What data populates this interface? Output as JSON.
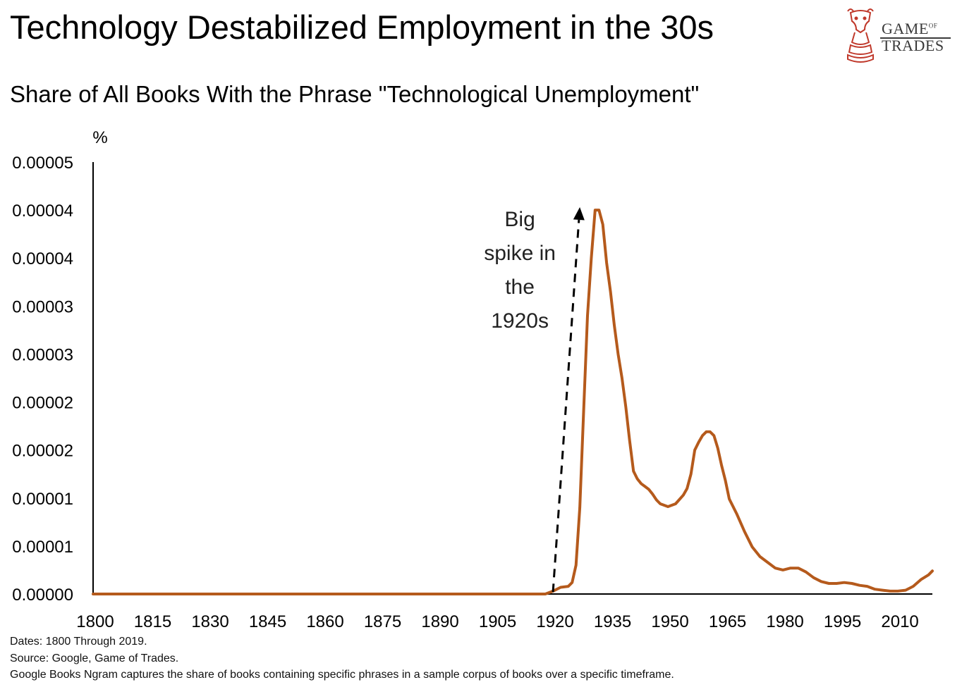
{
  "header": {
    "title": "Technology Destabilized Employment in the 30s",
    "subtitle": "Share of All Books With the Phrase \"Technological Unemployment\""
  },
  "logo": {
    "line1": "GAME",
    "line1_small": "OF",
    "line2": "TRADES"
  },
  "annotation": {
    "lines": [
      "Big",
      "spike in",
      "the",
      "1920s"
    ]
  },
  "footnotes": {
    "dates": "Dates: 1800 Through 2019.",
    "source": "Source: Google, Game of Trades.",
    "note": "Google Books Ngram captures the share of books containing specific phrases in a sample corpus of books over a specific timeframe."
  },
  "colors": {
    "line": "#b55a1c",
    "axis": "#000000",
    "logo_red": "#c0392b"
  },
  "chart_data": {
    "type": "line",
    "title": "Share of All Books With the Phrase \"Technological Unemployment\"",
    "ylabel": "%",
    "xlabel": "",
    "xlim": [
      1800,
      2019
    ],
    "ylim": [
      0,
      4.5e-05
    ],
    "x_ticks": [
      1800,
      1815,
      1830,
      1845,
      1860,
      1875,
      1890,
      1905,
      1920,
      1935,
      1950,
      1965,
      1980,
      1995,
      2010
    ],
    "y_ticks": [
      0,
      5e-06,
      1e-05,
      1.5e-05,
      2e-05,
      2.5e-05,
      3e-05,
      3.5e-05,
      4e-05,
      4.5e-05
    ],
    "y_tick_labels": [
      "0.00000",
      "0.00001",
      "0.00001",
      "0.00002",
      "0.00002",
      "0.00003",
      "0.00003",
      "0.00004",
      "0.00004",
      "0.00005"
    ],
    "grid": false,
    "series": [
      {
        "name": "Technological Unemployment",
        "x": [
          1800,
          1918,
          1920,
          1922,
          1924,
          1925,
          1926,
          1927,
          1928,
          1929,
          1930,
          1931,
          1932,
          1933,
          1934,
          1935,
          1936,
          1937,
          1938,
          1939,
          1940,
          1941,
          1942,
          1943,
          1944,
          1945,
          1946,
          1947,
          1948,
          1950,
          1952,
          1954,
          1955,
          1956,
          1957,
          1958,
          1959,
          1960,
          1961,
          1962,
          1963,
          1964,
          1965,
          1966,
          1968,
          1970,
          1972,
          1974,
          1976,
          1978,
          1980,
          1982,
          1984,
          1986,
          1988,
          1990,
          1992,
          1994,
          1996,
          1998,
          2000,
          2002,
          2004,
          2006,
          2008,
          2010,
          2012,
          2014,
          2016,
          2018,
          2019
        ],
        "values": [
          0,
          0,
          3e-07,
          7e-07,
          8e-07,
          1.2e-06,
          3e-06,
          9e-06,
          1.9e-05,
          2.9e-05,
          3.5e-05,
          4e-05,
          4e-05,
          3.85e-05,
          3.45e-05,
          3.15e-05,
          2.8e-05,
          2.5e-05,
          2.25e-05,
          1.95e-05,
          1.6e-05,
          1.28e-05,
          1.2e-05,
          1.15e-05,
          1.12e-05,
          1.09e-05,
          1.04e-05,
          9.8e-06,
          9.4e-06,
          9.1e-06,
          9.4e-06,
          1.03e-05,
          1.1e-05,
          1.25e-05,
          1.5e-05,
          1.58e-05,
          1.65e-05,
          1.69e-05,
          1.69e-05,
          1.65e-05,
          1.52e-05,
          1.34e-05,
          1.18e-05,
          9.9e-06,
          8.3e-06,
          6.5e-06,
          4.9e-06,
          3.9e-06,
          3.3e-06,
          2.7e-06,
          2.5e-06,
          2.7e-06,
          2.7e-06,
          2.3e-06,
          1.7e-06,
          1.3e-06,
          1.1e-06,
          1.1e-06,
          1.2e-06,
          1.1e-06,
          9e-07,
          8e-07,
          5e-07,
          4e-07,
          3e-07,
          3e-07,
          4e-07,
          8e-07,
          1.5e-06,
          2e-06,
          2.4e-06
        ]
      }
    ],
    "annotations": [
      {
        "text": "Big spike in the 1920s",
        "arrow_from": [
          1920,
          2e-07
        ],
        "arrow_to": [
          1927,
          4.03e-05
        ]
      }
    ]
  }
}
